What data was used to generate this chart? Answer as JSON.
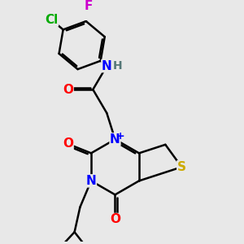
{
  "background_color": "#e8e8e8",
  "atom_colors": {
    "C": "#000000",
    "N": "#0000ff",
    "O": "#ff0000",
    "S": "#ccaa00",
    "F": "#cc00cc",
    "Cl": "#00aa00",
    "H": "#557777"
  },
  "bond_color": "#000000",
  "bond_width": 1.8,
  "font_size": 11,
  "figsize": [
    3.0,
    3.0
  ],
  "dpi": 100
}
